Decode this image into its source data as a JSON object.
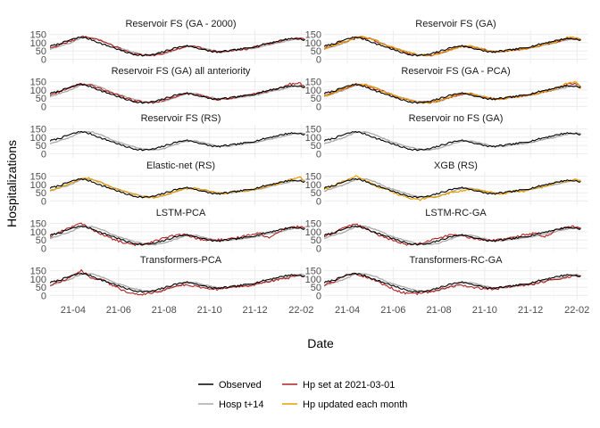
{
  "chart_data": {
    "type": "line",
    "xlabel": "Date",
    "ylabel": "Hospitalizations",
    "x_range": [
      "2021-03-01",
      "2022-02-15"
    ],
    "ylim": [
      -25,
      175
    ],
    "y_ticks": [
      0,
      50,
      100,
      150
    ],
    "y_tick_labels": [
      "0",
      "50",
      "100",
      "150"
    ],
    "x_ticks": [
      "2021-04-01",
      "2021-06-01",
      "2021-08-01",
      "2021-10-01",
      "2021-12-01",
      "2022-02-01"
    ],
    "x_tick_labels": [
      "21-04",
      "21-06",
      "21-08",
      "21-10",
      "21-12",
      "22-02"
    ],
    "grid": true,
    "legend_position": "bottom",
    "legend": [
      {
        "key": "observed",
        "label": "Observed",
        "color": "#000000"
      },
      {
        "key": "hp_fixed",
        "label": "Hp set at 2021-03-01",
        "color": "#B22222"
      },
      {
        "key": "hosp14",
        "label": "Hosp t+14",
        "color": "#A9A9A9"
      },
      {
        "key": "hp_updated",
        "label": "Hp updated each month",
        "color": "#E69F00"
      }
    ],
    "observed": {
      "dates": [
        "2021-03-01",
        "2021-03-15",
        "2021-03-29",
        "2021-04-12",
        "2021-04-26",
        "2021-05-10",
        "2021-05-24",
        "2021-06-07",
        "2021-06-21",
        "2021-07-05",
        "2021-07-19",
        "2021-08-02",
        "2021-08-16",
        "2021-08-30",
        "2021-09-13",
        "2021-09-27",
        "2021-10-11",
        "2021-10-25",
        "2021-11-08",
        "2021-11-22",
        "2021-12-06",
        "2021-12-20",
        "2022-01-03",
        "2022-01-17",
        "2022-01-31",
        "2022-02-07"
      ],
      "values": [
        78,
        95,
        118,
        135,
        118,
        92,
        72,
        48,
        30,
        22,
        28,
        48,
        68,
        82,
        70,
        52,
        42,
        50,
        58,
        68,
        82,
        98,
        112,
        125,
        122,
        115
      ]
    },
    "panels": [
      {
        "title": "Reservoir FS (GA - 2000)",
        "hosp14": [
          60,
          80,
          100,
          130,
          132,
          112,
          82,
          62,
          42,
          28,
          22,
          32,
          55,
          75,
          78,
          62,
          48,
          45,
          55,
          62,
          72,
          88,
          100,
          115,
          128,
          120
        ],
        "hp_fixed": [
          70,
          88,
          110,
          138,
          128,
          110,
          82,
          55,
          35,
          25,
          25,
          38,
          60,
          78,
          74,
          58,
          45,
          48,
          56,
          65,
          78,
          95,
          108,
          122,
          130,
          118
        ],
        "hp_updated": null
      },
      {
        "title": "Reservoir FS (GA)",
        "hosp14": [
          60,
          80,
          100,
          130,
          132,
          112,
          82,
          62,
          42,
          28,
          22,
          32,
          55,
          75,
          78,
          62,
          48,
          45,
          55,
          62,
          72,
          88,
          100,
          115,
          128,
          120
        ],
        "hp_fixed": [
          66,
          86,
          106,
          128,
          130,
          108,
          80,
          58,
          38,
          26,
          24,
          36,
          58,
          76,
          76,
          60,
          46,
          46,
          55,
          63,
          75,
          90,
          104,
          122,
          126,
          118
        ],
        "hp_updated": [
          64,
          84,
          104,
          132,
          134,
          110,
          82,
          60,
          40,
          27,
          23,
          34,
          57,
          77,
          77,
          61,
          47,
          46,
          56,
          64,
          74,
          92,
          102,
          130,
          132,
          110
        ]
      },
      {
        "title": "Reservoir FS (GA) all anteriority",
        "hosp14": [
          60,
          80,
          100,
          130,
          132,
          112,
          82,
          62,
          42,
          28,
          22,
          32,
          55,
          75,
          78,
          62,
          48,
          45,
          55,
          62,
          72,
          88,
          100,
          115,
          128,
          120
        ],
        "hp_fixed": [
          68,
          90,
          112,
          140,
          125,
          106,
          80,
          56,
          36,
          25,
          26,
          40,
          62,
          78,
          73,
          57,
          44,
          48,
          57,
          66,
          80,
          96,
          110,
          135,
          140,
          112
        ],
        "hp_updated": null
      },
      {
        "title": "Reservoir FS (GA - PCA)",
        "hosp14": [
          60,
          80,
          100,
          130,
          132,
          112,
          82,
          62,
          42,
          28,
          22,
          32,
          55,
          75,
          78,
          62,
          48,
          45,
          55,
          62,
          72,
          88,
          100,
          115,
          128,
          120
        ],
        "hp_fixed": [
          66,
          86,
          108,
          132,
          128,
          106,
          80,
          58,
          38,
          26,
          24,
          37,
          58,
          76,
          76,
          60,
          46,
          47,
          56,
          64,
          76,
          92,
          106,
          130,
          138,
          112
        ],
        "hp_updated": [
          64,
          84,
          112,
          136,
          130,
          108,
          80,
          58,
          39,
          26,
          23,
          35,
          57,
          77,
          77,
          61,
          47,
          46,
          56,
          64,
          74,
          92,
          104,
          138,
          145,
          100
        ]
      },
      {
        "title": "Reservoir FS (RS)",
        "hosp14": [
          60,
          80,
          100,
          130,
          132,
          112,
          82,
          62,
          42,
          28,
          22,
          32,
          55,
          75,
          78,
          62,
          48,
          45,
          55,
          62,
          72,
          88,
          100,
          115,
          128,
          120
        ],
        "hp_fixed": null,
        "hp_updated": null
      },
      {
        "title": "Reservoir no FS (GA)",
        "hosp14": [
          60,
          80,
          100,
          130,
          132,
          112,
          82,
          62,
          42,
          28,
          22,
          32,
          55,
          75,
          78,
          62,
          48,
          45,
          55,
          62,
          72,
          88,
          100,
          115,
          128,
          120
        ],
        "hp_fixed": null,
        "hp_updated": null
      },
      {
        "title": "Elastic-net (RS)",
        "hosp14": [
          60,
          80,
          100,
          130,
          132,
          112,
          82,
          62,
          42,
          28,
          22,
          32,
          55,
          75,
          78,
          62,
          48,
          45,
          55,
          62,
          72,
          88,
          100,
          115,
          128,
          120
        ],
        "hp_fixed": null,
        "hp_updated": [
          62,
          82,
          106,
          140,
          135,
          108,
          78,
          58,
          38,
          26,
          22,
          33,
          56,
          76,
          78,
          62,
          48,
          46,
          56,
          64,
          74,
          92,
          104,
          132,
          145,
          118
        ]
      },
      {
        "title": "XGB (RS)",
        "hosp14": [
          60,
          80,
          100,
          130,
          132,
          112,
          82,
          62,
          42,
          28,
          22,
          32,
          55,
          75,
          78,
          62,
          48,
          45,
          55,
          62,
          72,
          88,
          100,
          115,
          128,
          120
        ],
        "hp_fixed": null,
        "hp_updated": [
          70,
          95,
          125,
          150,
          120,
          90,
          70,
          40,
          18,
          5,
          20,
          30,
          50,
          62,
          70,
          62,
          50,
          40,
          60,
          58,
          80,
          85,
          110,
          118,
          135,
          122
        ]
      },
      {
        "title": "LSTM-PCA",
        "hosp14": [
          60,
          80,
          100,
          130,
          132,
          112,
          82,
          62,
          42,
          28,
          22,
          32,
          55,
          75,
          78,
          62,
          48,
          45,
          55,
          62,
          72,
          88,
          100,
          115,
          128,
          120
        ],
        "hp_fixed": [
          70,
          100,
          130,
          148,
          115,
          85,
          55,
          35,
          20,
          25,
          45,
          62,
          78,
          82,
          60,
          48,
          52,
          50,
          65,
          80,
          95,
          60,
          105,
          128,
          130,
          125
        ],
        "hp_updated": null
      },
      {
        "title": "LSTM-RC-GA",
        "hosp14": [
          60,
          80,
          100,
          130,
          132,
          112,
          82,
          62,
          42,
          28,
          22,
          32,
          55,
          75,
          78,
          62,
          48,
          45,
          55,
          62,
          72,
          88,
          100,
          115,
          128,
          120
        ],
        "hp_fixed": [
          72,
          98,
          132,
          146,
          118,
          88,
          58,
          36,
          22,
          26,
          46,
          64,
          80,
          80,
          62,
          48,
          50,
          52,
          64,
          80,
          92,
          68,
          108,
          126,
          132,
          120
        ],
        "hp_updated": null
      },
      {
        "title": "Transformers-PCA",
        "hosp14": [
          60,
          80,
          100,
          130,
          132,
          112,
          82,
          62,
          42,
          28,
          22,
          32,
          55,
          75,
          78,
          62,
          48,
          45,
          55,
          62,
          72,
          88,
          100,
          115,
          128,
          120
        ],
        "hp_fixed": [
          62,
          85,
          115,
          150,
          105,
          95,
          60,
          30,
          12,
          8,
          18,
          35,
          58,
          65,
          55,
          45,
          38,
          45,
          55,
          60,
          68,
          85,
          100,
          108,
          118,
          115
        ],
        "hp_updated": null
      },
      {
        "title": "Transformers-RC-GA",
        "hosp14": [
          60,
          80,
          100,
          130,
          132,
          112,
          82,
          62,
          42,
          28,
          22,
          32,
          55,
          75,
          78,
          62,
          48,
          45,
          55,
          62,
          72,
          88,
          100,
          115,
          128,
          120
        ],
        "hp_fixed": [
          62,
          88,
          120,
          132,
          112,
          88,
          55,
          28,
          10,
          12,
          22,
          38,
          55,
          62,
          52,
          42,
          40,
          46,
          55,
          62,
          70,
          86,
          98,
          110,
          120,
          118
        ],
        "hp_updated": null
      }
    ]
  }
}
